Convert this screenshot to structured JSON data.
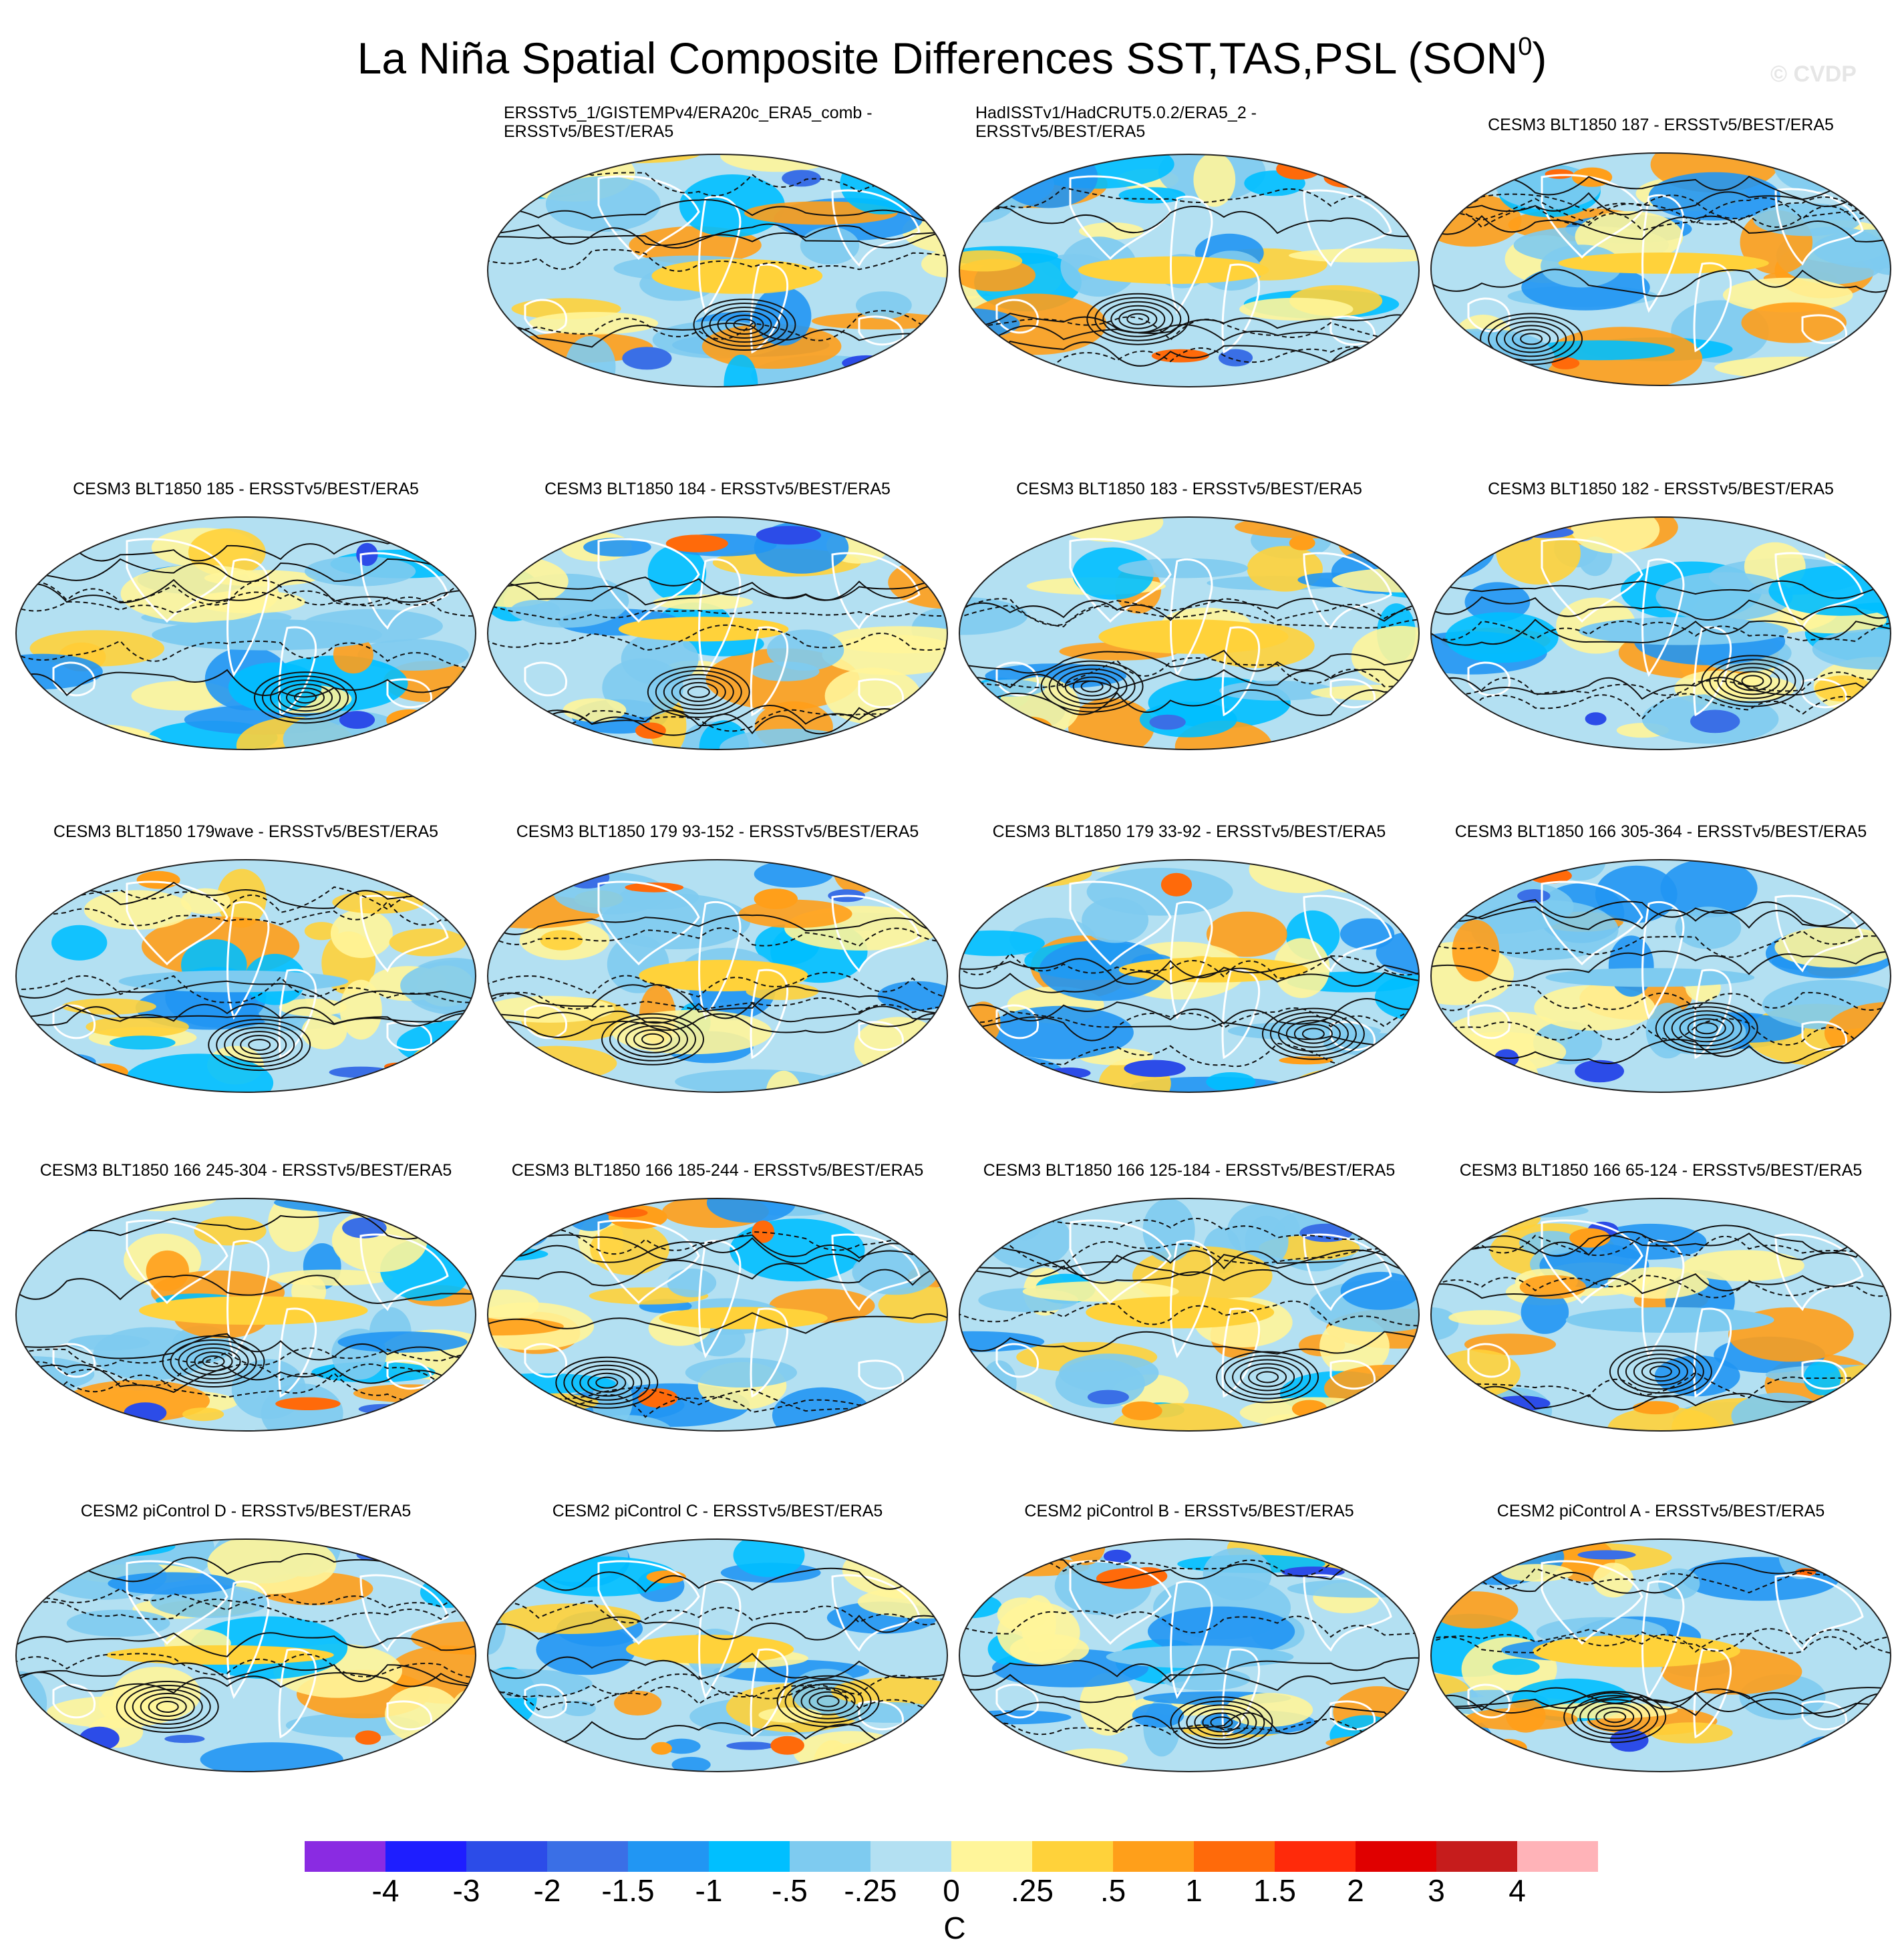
{
  "figure": {
    "title_main": "La Niña Spatial Composite Differences SST,TAS,PSL (SON",
    "title_sup": "0",
    "title_close": ")",
    "watermark": "© CVDP"
  },
  "panels": [
    {
      "id": "obs-comb",
      "line1": "ERSSTv5_1/GISTEMPv4/ERA20c_ERA5_comb -",
      "line2": "ERSSTv5/BEST/ERA5",
      "pattern": 1
    },
    {
      "id": "obs-had",
      "line1": "HadISSTv1/HadCRUT5.0.2/ERA5_2 -",
      "line2": "ERSSTv5/BEST/ERA5",
      "pattern": 2
    },
    {
      "id": "blt187",
      "line1": "CESM3 BLT1850 187 - ERSSTv5/BEST/ERA5",
      "line2": "",
      "pattern": 3
    },
    {
      "id": "blt185",
      "line1": "CESM3 BLT1850 185 - ERSSTv5/BEST/ERA5",
      "line2": "",
      "pattern": 4
    },
    {
      "id": "blt184",
      "line1": "CESM3 BLT1850 184 - ERSSTv5/BEST/ERA5",
      "line2": "",
      "pattern": 5
    },
    {
      "id": "blt183",
      "line1": "CESM3 BLT1850 183 - ERSSTv5/BEST/ERA5",
      "line2": "",
      "pattern": 6
    },
    {
      "id": "blt182",
      "line1": "CESM3 BLT1850 182 - ERSSTv5/BEST/ERA5",
      "line2": "",
      "pattern": 7
    },
    {
      "id": "blt179wave",
      "line1": "CESM3 BLT1850 179wave - ERSSTv5/BEST/ERA5",
      "line2": "",
      "pattern": 8
    },
    {
      "id": "blt179-93",
      "line1": "CESM3 BLT1850 179 93-152 - ERSSTv5/BEST/ERA5",
      "line2": "",
      "pattern": 9
    },
    {
      "id": "blt179-33",
      "line1": "CESM3 BLT1850 179 33-92 - ERSSTv5/BEST/ERA5",
      "line2": "",
      "pattern": 10
    },
    {
      "id": "blt166-305",
      "line1": "CESM3 BLT1850 166 305-364 - ERSSTv5/BEST/ERA5",
      "line2": "",
      "pattern": 11
    },
    {
      "id": "blt166-245",
      "line1": "CESM3 BLT1850 166 245-304 - ERSSTv5/BEST/ERA5",
      "line2": "",
      "pattern": 12
    },
    {
      "id": "blt166-185",
      "line1": "CESM3 BLT1850 166 185-244 - ERSSTv5/BEST/ERA5",
      "line2": "",
      "pattern": 13
    },
    {
      "id": "blt166-125",
      "line1": "CESM3 BLT1850 166 125-184 - ERSSTv5/BEST/ERA5",
      "line2": "",
      "pattern": 14
    },
    {
      "id": "blt166-65",
      "line1": "CESM3 BLT1850 166 65-124 - ERSSTv5/BEST/ERA5",
      "line2": "",
      "pattern": 15
    },
    {
      "id": "pic-d",
      "line1": "CESM2 piControl D - ERSSTv5/BEST/ERA5",
      "line2": "",
      "pattern": 16
    },
    {
      "id": "pic-c",
      "line1": "CESM2 piControl C - ERSSTv5/BEST/ERA5",
      "line2": "",
      "pattern": 17
    },
    {
      "id": "pic-b",
      "line1": "CESM2 piControl B - ERSSTv5/BEST/ERA5",
      "line2": "",
      "pattern": 18
    },
    {
      "id": "pic-a",
      "line1": "CESM2 piControl A - ERSSTv5/BEST/ERA5",
      "line2": "",
      "pattern": 19
    }
  ],
  "colorbar": {
    "units": "C",
    "labels": [
      "-4",
      "-3",
      "-2",
      "-1.5",
      "-1",
      "-.5",
      "-.25",
      "0",
      ".25",
      ".5",
      "1",
      "1.5",
      "2",
      "3",
      "4"
    ],
    "colors": [
      "#8a2be2",
      "#1e1eff",
      "#2c4ce8",
      "#3a6fe6",
      "#2196f3",
      "#00bfff",
      "#7ecbf0",
      "#b3e0f2",
      "#fff59a",
      "#ffd23a",
      "#ff9f1a",
      "#ff6a0a",
      "#ff2a0a",
      "#e00000",
      "#c61c1c",
      "#ffb3b8"
    ]
  }
}
